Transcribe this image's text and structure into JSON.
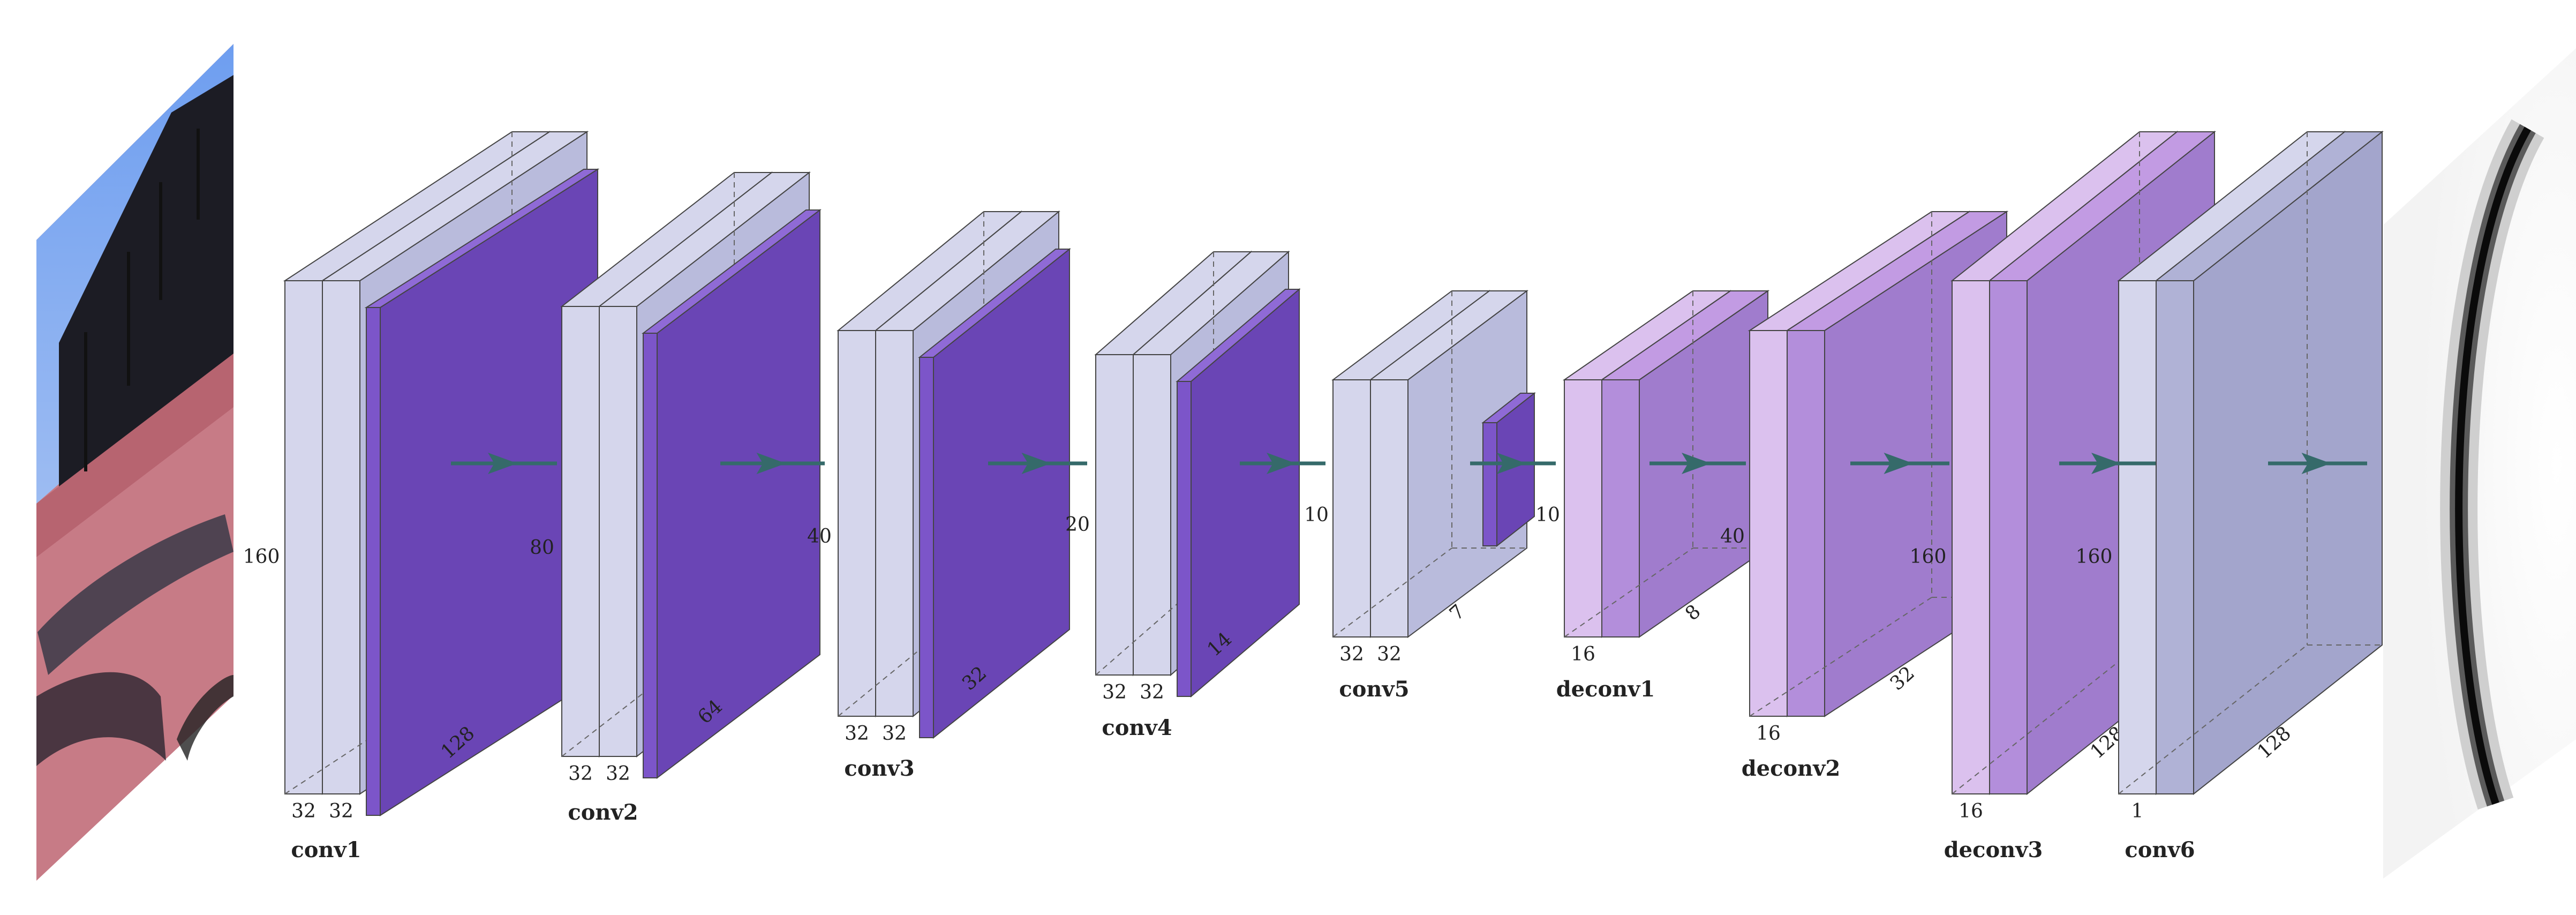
{
  "layers": [
    {
      "name": "conv1",
      "height_dim": "160",
      "depth_dim": "128",
      "channel_dims": [
        "32",
        "32"
      ]
    },
    {
      "name": "conv2",
      "height_dim": "80",
      "depth_dim": "64",
      "channel_dims": [
        "32",
        "32"
      ]
    },
    {
      "name": "conv3",
      "height_dim": "40",
      "depth_dim": "32",
      "channel_dims": [
        "32",
        "32"
      ]
    },
    {
      "name": "conv4",
      "height_dim": "20",
      "depth_dim": "14",
      "channel_dims": [
        "32",
        "32"
      ]
    },
    {
      "name": "conv5",
      "height_dim": "10",
      "depth_dim": "7",
      "channel_dims": [
        "32",
        "32"
      ]
    },
    {
      "name": "deconv1",
      "height_dim": "10",
      "depth_dim": "8",
      "channel_dims": [
        "16"
      ]
    },
    {
      "name": "deconv2",
      "height_dim": "40",
      "depth_dim": "32",
      "channel_dims": [
        "16"
      ]
    },
    {
      "name": "deconv3",
      "height_dim": "160",
      "depth_dim": "128",
      "channel_dims": [
        "16"
      ]
    },
    {
      "name": "conv6",
      "height_dim": "160",
      "depth_dim": "128",
      "channel_dims": [
        "1"
      ]
    }
  ],
  "colors": {
    "conv_block": "#d5d6ec",
    "conv_side": "#b9bbdc",
    "pool_block": "#7c55c9",
    "deconv_block": "#b38edb",
    "deconv_light": "#dbc1ee",
    "output_block": "#b0b2d6",
    "arrow": "#356a6a"
  },
  "icons": {
    "input_image": "input-photo-icon",
    "output_image": "output-mask-icon"
  }
}
